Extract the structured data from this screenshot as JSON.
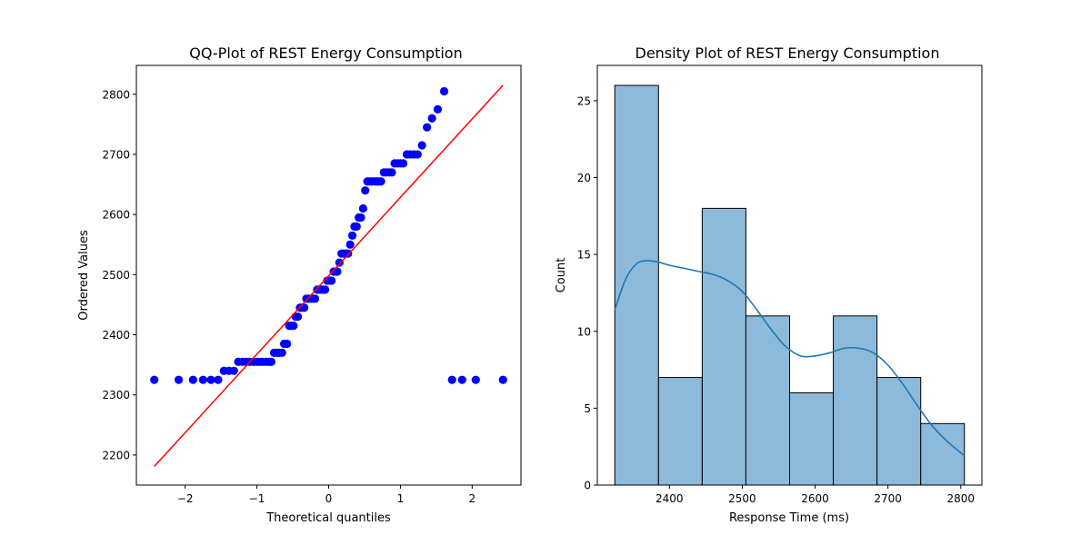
{
  "chart_data": [
    {
      "type": "scatter",
      "title": "QQ-Plot of REST Energy Consumption",
      "xlabel": "Theoretical quantiles",
      "ylabel": "Ordered Values",
      "xlim": [
        -2.68,
        2.68
      ],
      "ylim": [
        2150,
        2848
      ],
      "xticks": [
        -2,
        -1,
        0,
        1,
        2
      ],
      "xtick_labels": [
        "−2",
        "−1",
        "0",
        "1",
        "2"
      ],
      "yticks": [
        2200,
        2300,
        2400,
        2500,
        2600,
        2700,
        2800
      ],
      "ytick_labels": [
        "2200",
        "2300",
        "2400",
        "2500",
        "2600",
        "2700",
        "2800"
      ],
      "grid": false,
      "point_color": "#0000ff",
      "line_color": "#ff0000",
      "fit_line": {
        "x": [
          -2.43,
          2.43
        ],
        "y": [
          2181,
          2815
        ]
      },
      "points": {
        "x": [
          -2.43,
          -2.09,
          -1.89,
          -1.75,
          -1.64,
          -1.54,
          -1.46,
          -1.39,
          -1.32,
          -1.26,
          -1.2,
          -1.15,
          -1.1,
          -1.05,
          -1.0,
          -0.96,
          -0.92,
          -0.87,
          -0.83,
          -0.8,
          -0.76,
          -0.72,
          -0.69,
          -0.65,
          -0.62,
          -0.58,
          -0.55,
          -0.52,
          -0.49,
          -0.46,
          -0.43,
          -0.4,
          -0.37,
          -0.34,
          -0.31,
          -0.28,
          -0.25,
          -0.22,
          -0.19,
          -0.16,
          -0.13,
          -0.1,
          -0.08,
          -0.05,
          -0.02,
          0.01,
          0.04,
          0.07,
          0.1,
          0.12,
          0.15,
          0.18,
          0.21,
          0.24,
          0.27,
          0.3,
          0.33,
          0.36,
          0.39,
          0.42,
          0.45,
          0.48,
          0.51,
          0.54,
          0.57,
          0.6,
          0.64,
          0.67,
          0.7,
          0.73,
          0.77,
          0.8,
          0.84,
          0.88,
          0.92,
          0.96,
          1.0,
          1.04,
          1.09,
          1.14,
          1.19,
          1.24,
          1.3,
          1.37,
          1.44,
          1.52,
          1.61,
          1.72,
          1.86,
          2.05,
          2.43
        ],
        "y": [
          2325,
          2325,
          2325,
          2325,
          2325,
          2325,
          2340,
          2340,
          2340,
          2355,
          2355,
          2355,
          2355,
          2355,
          2355,
          2355,
          2355,
          2355,
          2355,
          2355,
          2370,
          2370,
          2370,
          2370,
          2385,
          2385,
          2415,
          2415,
          2415,
          2430,
          2430,
          2445,
          2445,
          2445,
          2460,
          2460,
          2460,
          2460,
          2460,
          2475,
          2475,
          2475,
          2475,
          2475,
          2490,
          2490,
          2490,
          2505,
          2505,
          2505,
          2520,
          2535,
          2535,
          2535,
          2535,
          2550,
          2565,
          2580,
          2580,
          2595,
          2595,
          2610,
          2640,
          2655,
          2655,
          2655,
          2655,
          2655,
          2655,
          2655,
          2670,
          2670,
          2670,
          2670,
          2685,
          2685,
          2685,
          2685,
          2700,
          2700,
          2700,
          2700,
          2715,
          2745,
          2760,
          2775,
          2805,
          2325,
          2325,
          2325,
          2325
        ]
      }
    },
    {
      "type": "bar",
      "title": "Density Plot of REST Energy Consumption",
      "xlabel": "Response Time (ms)",
      "ylabel": "Count",
      "xlim": [
        2301,
        2829
      ],
      "ylim": [
        0,
        27.3
      ],
      "xticks": [
        2400,
        2500,
        2600,
        2700,
        2800
      ],
      "xtick_labels": [
        "2400",
        "2500",
        "2600",
        "2700",
        "2800"
      ],
      "yticks": [
        0,
        5,
        10,
        15,
        20,
        25
      ],
      "ytick_labels": [
        "0",
        "5",
        "10",
        "15",
        "20",
        "25"
      ],
      "grid": false,
      "bar_fill": "#8db9da",
      "bar_edge": "#000000",
      "kde_color": "#1f77b4",
      "bins": [
        {
          "start": 2325,
          "end": 2385,
          "count": 26
        },
        {
          "start": 2385,
          "end": 2445,
          "count": 7
        },
        {
          "start": 2445,
          "end": 2505,
          "count": 18
        },
        {
          "start": 2505,
          "end": 2565,
          "count": 11
        },
        {
          "start": 2565,
          "end": 2625,
          "count": 6
        },
        {
          "start": 2625,
          "end": 2685,
          "count": 11
        },
        {
          "start": 2685,
          "end": 2745,
          "count": 7
        },
        {
          "start": 2745,
          "end": 2805,
          "count": 4
        }
      ],
      "kde": {
        "x": [
          2325,
          2340,
          2355,
          2370,
          2385,
          2400,
          2420,
          2440,
          2460,
          2480,
          2500,
          2520,
          2540,
          2560,
          2580,
          2600,
          2620,
          2640,
          2660,
          2680,
          2700,
          2720,
          2740,
          2760,
          2780,
          2805
        ],
        "y": [
          11.4,
          13.4,
          14.4,
          14.6,
          14.5,
          14.3,
          14.1,
          13.9,
          13.7,
          13.3,
          12.6,
          11.4,
          10.1,
          9.0,
          8.4,
          8.4,
          8.6,
          8.9,
          8.9,
          8.6,
          7.8,
          6.6,
          5.2,
          3.9,
          2.9,
          1.9
        ]
      }
    }
  ]
}
